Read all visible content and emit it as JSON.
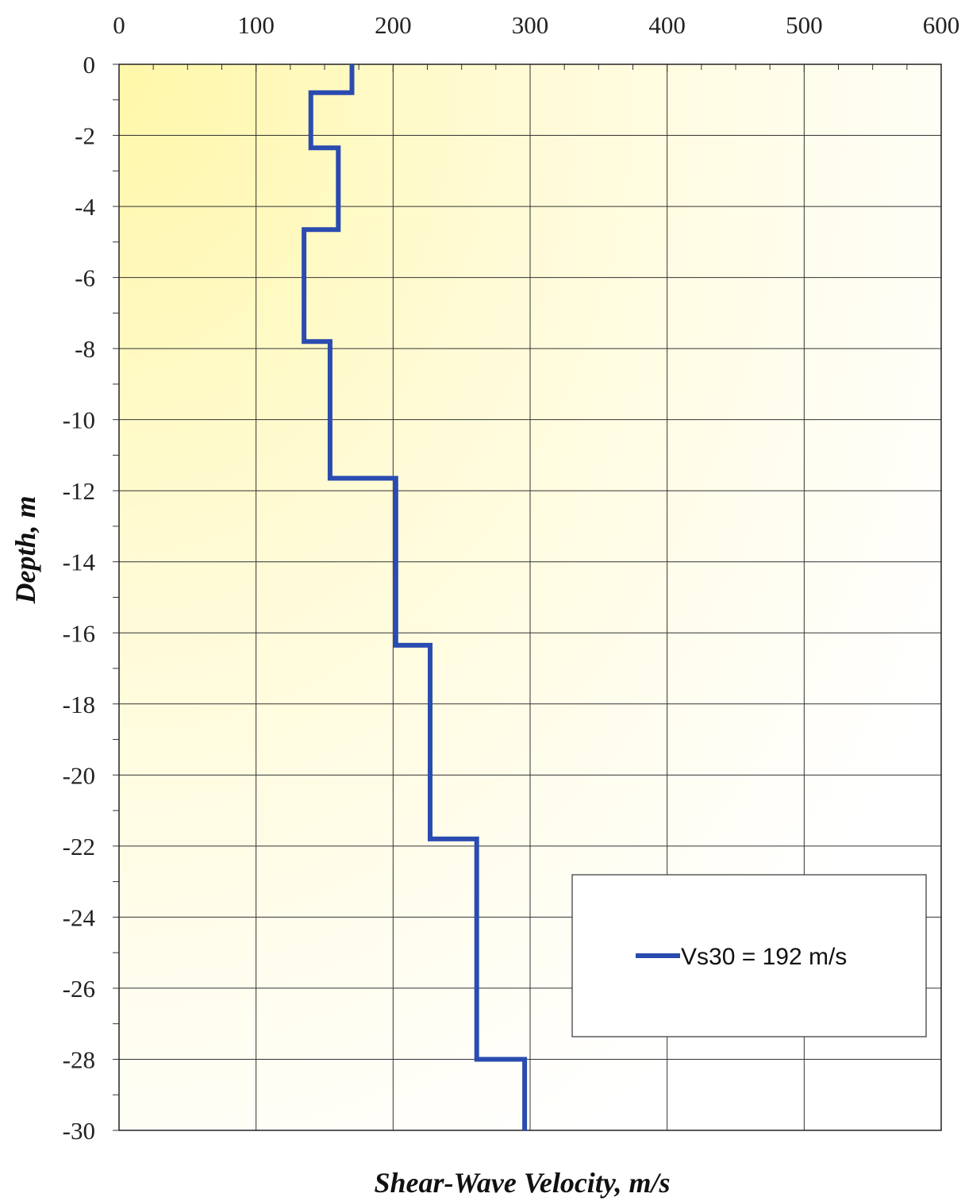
{
  "chart_data": {
    "type": "line",
    "xlabel": "Shear-Wave Velocity, m/s",
    "ylabel": "Depth, m",
    "xlim": [
      0,
      600
    ],
    "ylim": [
      -30,
      0
    ],
    "x_ticks": [
      "0",
      "100",
      "200",
      "300",
      "400",
      "500",
      "600"
    ],
    "y_ticks": [
      "0",
      "-2",
      "-4",
      "-6",
      "-8",
      "-10",
      "-12",
      "-14",
      "-16",
      "-18",
      "-20",
      "-22",
      "-24",
      "-26",
      "-28",
      "-30"
    ],
    "x_axis_position": "top",
    "grid": true,
    "legend_position": "lower-right",
    "background": "yellow gradient fading from top-left",
    "series": [
      {
        "name": "Vs30 = 192 m/s",
        "color": "#2a4bb0",
        "step_profile": true,
        "x": [
          170,
          170,
          140,
          140,
          160,
          160,
          135,
          135,
          154,
          154,
          202,
          202,
          227,
          227,
          261,
          261,
          296,
          296
        ],
        "y": [
          0,
          -0.8,
          -0.8,
          -2.35,
          -2.35,
          -4.65,
          -4.65,
          -7.8,
          -7.8,
          -11.65,
          -11.65,
          -16.35,
          -16.35,
          -21.8,
          -21.8,
          -28.0,
          -28.0,
          -30
        ]
      }
    ]
  }
}
